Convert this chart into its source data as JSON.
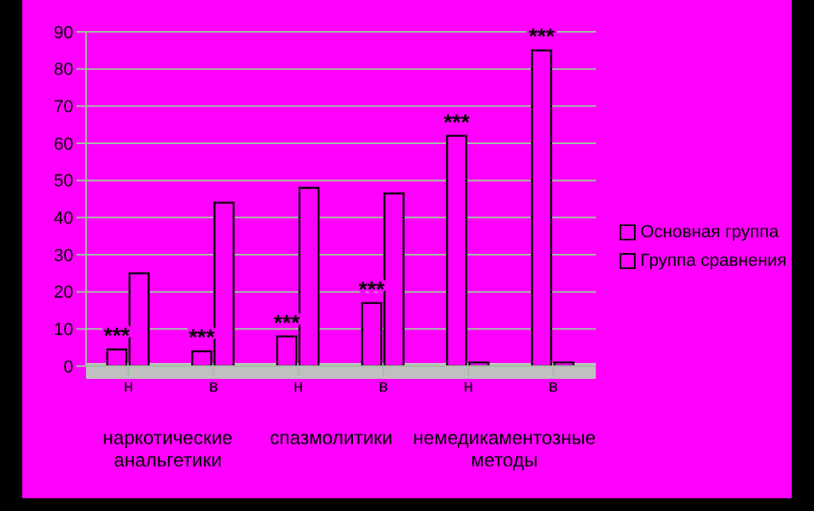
{
  "chart_data": {
    "type": "bar",
    "categories": [
      "н",
      "в",
      "н",
      "в",
      "н",
      "в"
    ],
    "series": [
      {
        "name": "Основная группа",
        "color": "#ff00ff",
        "values": [
          4.5,
          4,
          8,
          17,
          62,
          85
        ],
        "value_labels": [
          "***",
          "***",
          "***",
          "***",
          "***",
          "***"
        ]
      },
      {
        "name": "Группа сравнения",
        "color": "#ff00ff",
        "values": [
          25,
          44,
          48,
          46.5,
          1,
          1
        ]
      }
    ],
    "ylim": [
      0,
      90
    ],
    "yticks": [
      0,
      10,
      20,
      30,
      40,
      50,
      60,
      70,
      80,
      90
    ],
    "grid": "y",
    "legend": "right",
    "annotations": [
      "наркотические анальгетики",
      "спазмолитики",
      "немедикаментозные методы"
    ]
  }
}
